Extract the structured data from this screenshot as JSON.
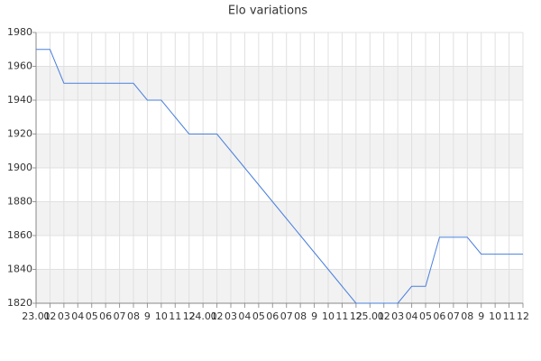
{
  "chart_data": {
    "type": "line",
    "title": "Elo variations",
    "categories": [
      "23.01",
      "02",
      "03",
      "04",
      "05",
      "06",
      "07",
      "08",
      "9",
      "10",
      "11",
      "12",
      "24.01",
      "02",
      "03",
      "04",
      "05",
      "06",
      "07",
      "08",
      "9",
      "10",
      "11",
      "12",
      "25.01",
      "02",
      "03",
      "04",
      "05",
      "06",
      "07",
      "08",
      "9",
      "10",
      "11",
      "12"
    ],
    "series": [
      {
        "name": "Elo",
        "color": "#4a80dd",
        "values": [
          1970,
          1970,
          1950,
          1950,
          1950,
          1950,
          1950,
          1950,
          1940,
          1940,
          1930,
          1920,
          1920,
          1920,
          1910,
          1900,
          1890,
          1880,
          1870,
          1860,
          1850,
          1840,
          1830,
          1820,
          1820,
          1820,
          1820,
          1830,
          1830,
          1859,
          1859,
          1859,
          1849,
          1849,
          1849,
          1849
        ]
      }
    ],
    "ylim": [
      1820,
      1980
    ],
    "yticks": [
      1820,
      1840,
      1860,
      1880,
      1900,
      1920,
      1940,
      1960,
      1980
    ],
    "grid": true
  }
}
